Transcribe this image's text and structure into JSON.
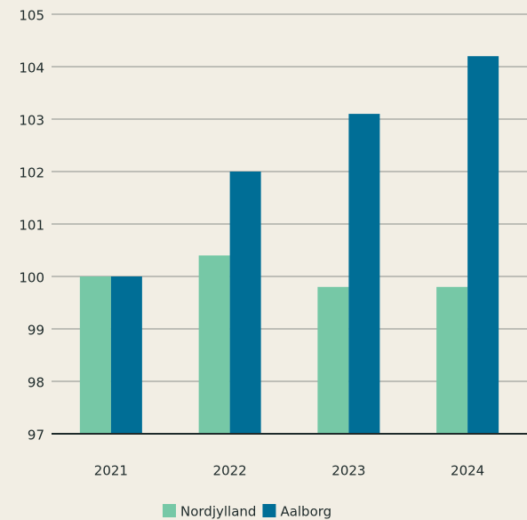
{
  "chart_data": {
    "type": "bar",
    "categories": [
      "2021",
      "2022",
      "2023",
      "2024"
    ],
    "series": [
      {
        "name": "Nordjylland",
        "color": "#76c8a6",
        "values": [
          100,
          100.4,
          99.8,
          99.8
        ]
      },
      {
        "name": "Aalborg",
        "color": "#006e96",
        "values": [
          100,
          102,
          103.1,
          104.2
        ]
      }
    ],
    "ylim": [
      97,
      105
    ],
    "yticks": [
      97,
      98,
      99,
      100,
      101,
      102,
      103,
      104,
      105
    ],
    "grid": true,
    "legend": "bottom"
  }
}
